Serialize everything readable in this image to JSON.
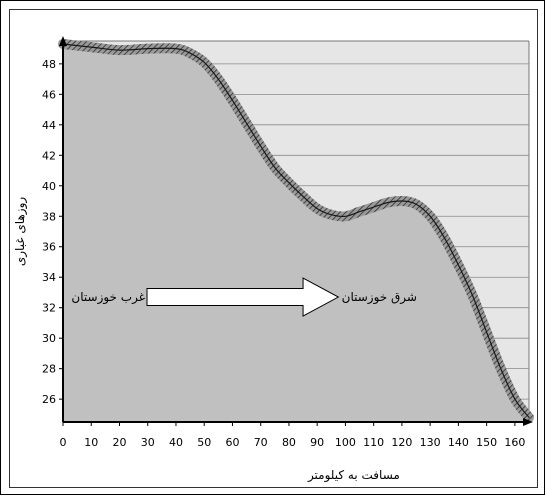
{
  "chart_data": {
    "type": "area",
    "title": "",
    "xlabel": "مسافت به کیلومتر",
    "ylabel": "روزهای غباری",
    "xlim": [
      0,
      165
    ],
    "ylim": [
      24.5,
      49.5
    ],
    "x_ticks": [
      0,
      10,
      20,
      30,
      40,
      50,
      60,
      70,
      80,
      90,
      100,
      110,
      120,
      130,
      140,
      150,
      160
    ],
    "y_ticks": [
      26,
      28,
      30,
      32,
      34,
      36,
      38,
      40,
      42,
      44,
      46,
      48
    ],
    "grid": "horizontal",
    "series": [
      {
        "x": [
          0,
          10,
          20,
          30,
          40,
          45,
          50,
          55,
          60,
          65,
          70,
          75,
          80,
          85,
          90,
          95,
          100,
          105,
          110,
          115,
          120,
          125,
          130,
          135,
          140,
          145,
          150,
          155,
          160,
          165
        ],
        "values": [
          49.3,
          49.1,
          48.9,
          49.0,
          49.0,
          48.7,
          48.1,
          47.0,
          45.6,
          44.1,
          42.6,
          41.2,
          40.2,
          39.3,
          38.5,
          38.1,
          38.0,
          38.3,
          38.6,
          38.9,
          39.0,
          38.8,
          38.0,
          36.6,
          34.8,
          32.8,
          30.4,
          28.0,
          26.0,
          24.8
        ]
      }
    ],
    "annotations": {
      "left": "غرب خوزستان",
      "right": "شرق خوزستان"
    },
    "colors": {
      "area": "#c0c0c0",
      "plot_bg": "#e6e6e6",
      "edge": "#6e6e6e",
      "grid": "#8a8a8a"
    }
  }
}
